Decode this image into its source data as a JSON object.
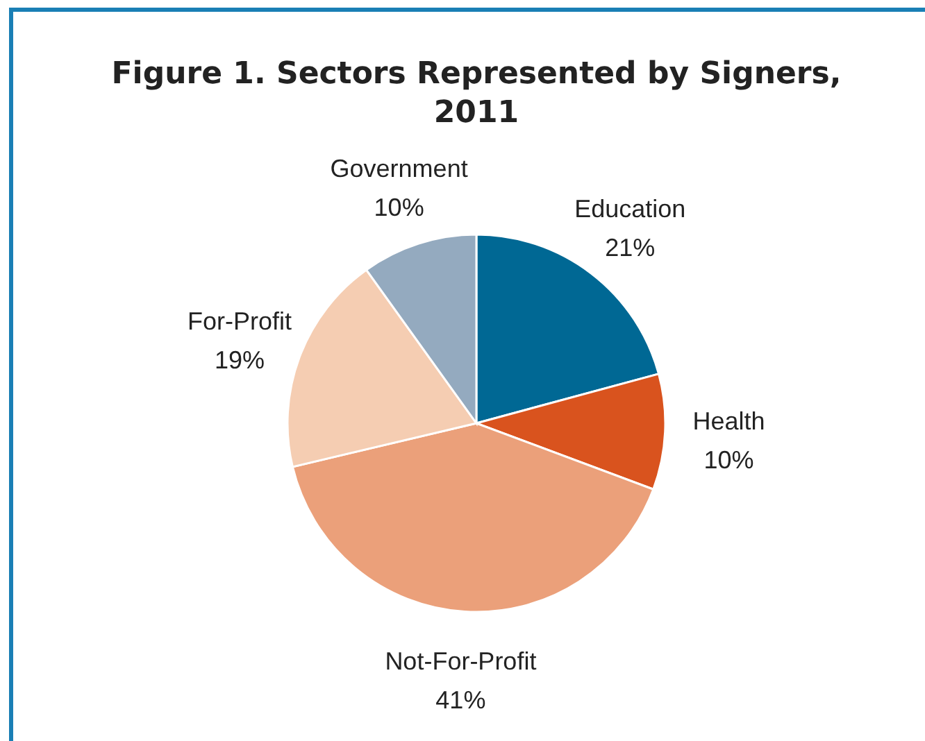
{
  "chart_data": {
    "type": "pie",
    "title": "Figure 1. Sectors Represented by Signers, 2011",
    "categories": [
      "Education",
      "Health",
      "Not-For-Profit",
      "For-Profit",
      "Government"
    ],
    "values": [
      21,
      10,
      41,
      19,
      10
    ],
    "value_labels": [
      "21%",
      "10%",
      "41%",
      "19%",
      "10%"
    ],
    "colors": [
      "#006894",
      "#d9531e",
      "#eba07a",
      "#f5cdb2",
      "#94aabf"
    ]
  }
}
